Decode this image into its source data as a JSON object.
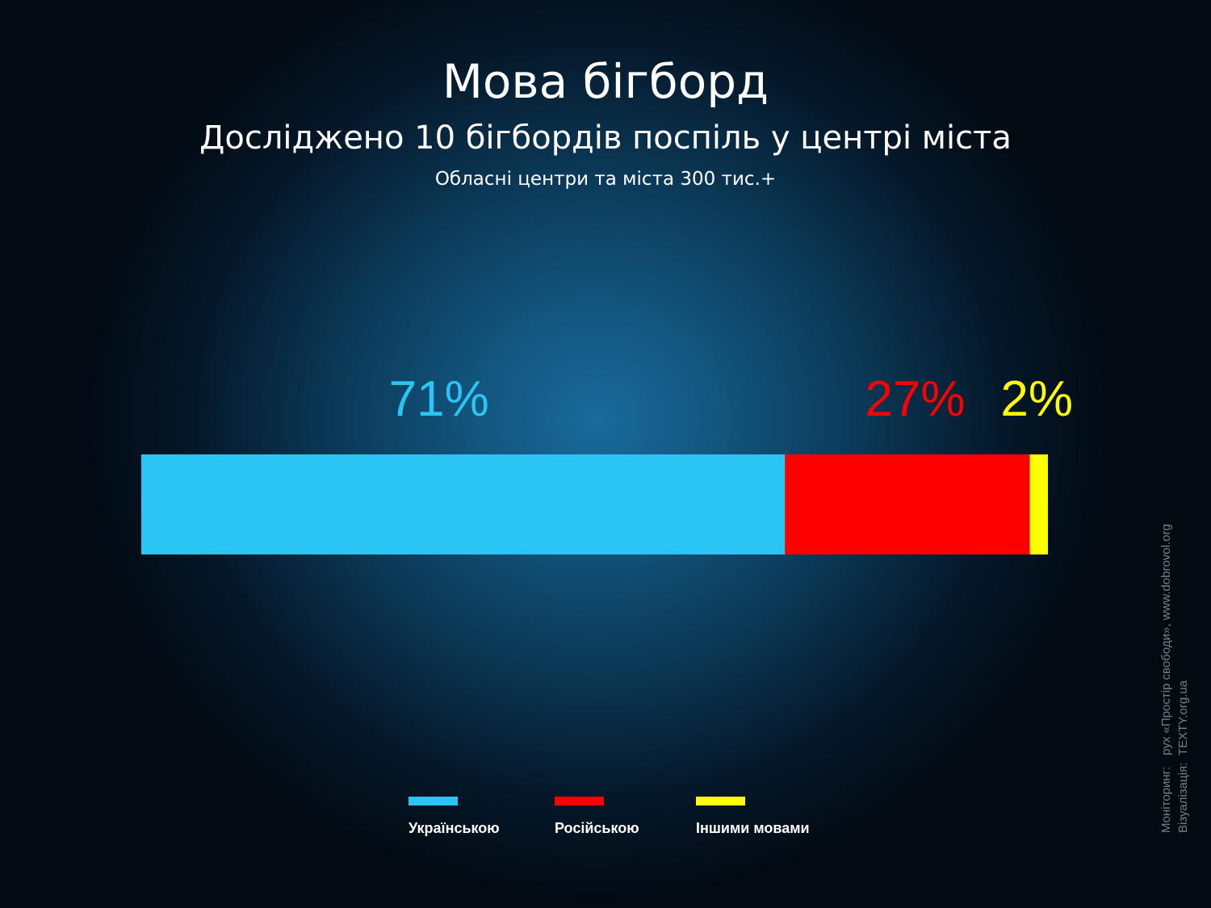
{
  "header": {
    "title": "Мова бігборд",
    "subtitle": "Досліджено 10 бігбордів поспіль у центрі міста",
    "note": "Обласні центри та міста 300 тис.+"
  },
  "chart_data": {
    "type": "bar",
    "stacked": true,
    "orientation": "horizontal",
    "title": "Мова бігборд",
    "subtitle": "Досліджено 10 бігбордів поспіль у центрі міста",
    "xlabel": "",
    "ylabel": "",
    "xlim": [
      0,
      100
    ],
    "grid": false,
    "legend_position": "bottom",
    "series": [
      {
        "name": "Українською",
        "value": 71,
        "label": "71%",
        "color": "#2bc5f5"
      },
      {
        "name": "Російською",
        "value": 27,
        "label": "27%",
        "color": "#ff0000"
      },
      {
        "name": "Іншими мовами",
        "value": 2,
        "label": "2%",
        "color": "#ffff00"
      }
    ]
  },
  "credits": {
    "monitoring_label": "Моніторинг:",
    "monitoring_value": "рух «Простір свободи», www.dobrovol.org",
    "visualization_label": "Візуалізація:",
    "visualization_value": "TEXTY.org.ua"
  }
}
